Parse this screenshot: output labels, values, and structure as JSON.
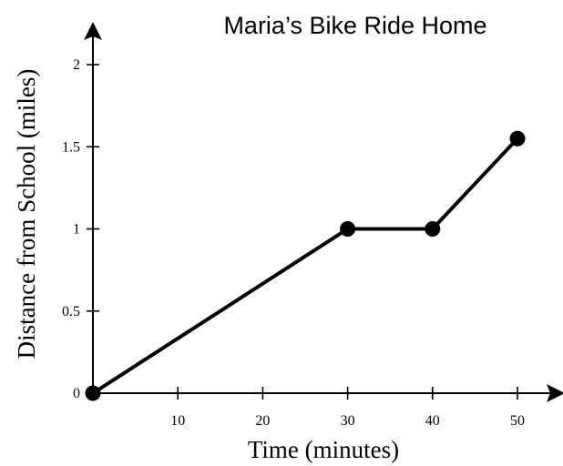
{
  "chart_data": {
    "type": "line",
    "title": "Maria’s Bike Ride Home",
    "xlabel": "Time (minutes)",
    "ylabel": "Distance from School (miles)",
    "xlim": [
      0,
      50
    ],
    "ylim": [
      0,
      2
    ],
    "x_ticks": [
      10,
      20,
      30,
      40,
      50
    ],
    "y_ticks": [
      0,
      0.5,
      1,
      1.5,
      2
    ],
    "x_tick_labels": [
      "10",
      "20",
      "30",
      "40",
      "50"
    ],
    "y_tick_labels": [
      "0",
      "0.5",
      "1",
      "1.5",
      "2"
    ],
    "grid": false,
    "series": [
      {
        "x": [
          0,
          30,
          40,
          50
        ],
        "y": [
          0,
          1,
          1,
          1.55
        ],
        "color": "#000000"
      }
    ]
  }
}
